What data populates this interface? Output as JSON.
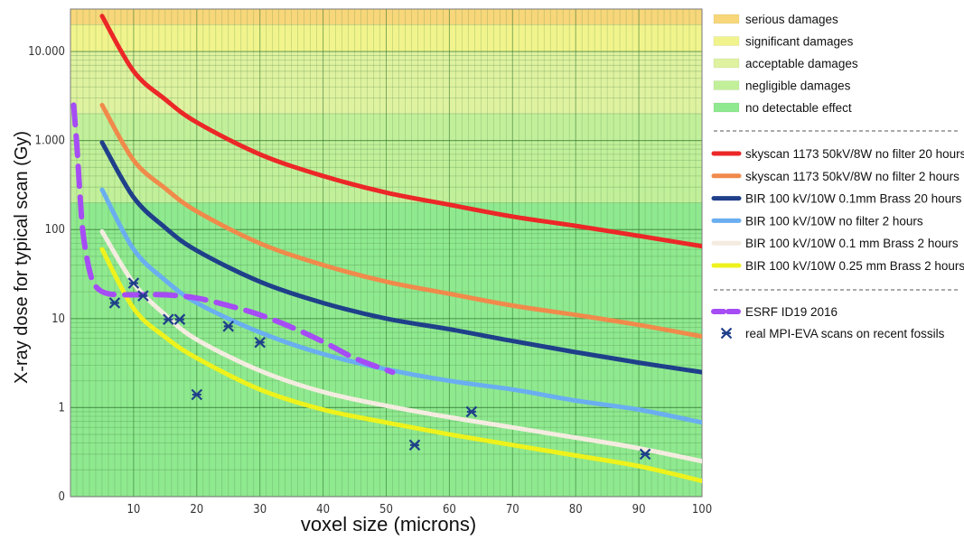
{
  "chart_data": {
    "type": "line",
    "title": "",
    "xlabel": "voxel size (microns)",
    "ylabel": "X-ray dose for typical scan (Gy)",
    "xlim": [
      0,
      100
    ],
    "ylim": [
      0.1,
      30000
    ],
    "y_scale": "log",
    "x_ticks": [
      10,
      20,
      30,
      40,
      50,
      60,
      70,
      80,
      90,
      100
    ],
    "y_ticks": [
      {
        "value": 0.1,
        "label": "0"
      },
      {
        "value": 1,
        "label": "1"
      },
      {
        "value": 10,
        "label": "10"
      },
      {
        "value": 100,
        "label": "100"
      },
      {
        "value": 1000,
        "label": "1.000"
      },
      {
        "value": 10000,
        "label": "10.000"
      }
    ],
    "grid": true,
    "legend_position": "right",
    "damage_bands": [
      {
        "label": "serious damages",
        "from": 20000,
        "to": 30000,
        "color": "#f7d77a"
      },
      {
        "label": "significant damages",
        "from": 10000,
        "to": 20000,
        "color": "#f1f48c"
      },
      {
        "label": "acceptable damages",
        "from": 2000,
        "to": 10000,
        "color": "#dff2a0"
      },
      {
        "label": "negligible damages",
        "from": 200,
        "to": 2000,
        "color": "#c2f09a"
      },
      {
        "label": "no detectable effect",
        "from": 0.1,
        "to": 200,
        "color": "#8fe98f"
      }
    ],
    "series": [
      {
        "name": "skyscan 1173 50kV/8W no filter 20 hours",
        "color": "#ec2727",
        "style": "solid",
        "points": [
          [
            5,
            25000
          ],
          [
            10,
            6000
          ],
          [
            15,
            2900
          ],
          [
            20,
            1600
          ],
          [
            30,
            700
          ],
          [
            40,
            400
          ],
          [
            50,
            260
          ],
          [
            60,
            190
          ],
          [
            70,
            140
          ],
          [
            80,
            110
          ],
          [
            90,
            85
          ],
          [
            100,
            65
          ]
        ]
      },
      {
        "name": "skyscan 1173 50kV/8W no filter 2 hours",
        "color": "#f08a4b",
        "style": "solid",
        "points": [
          [
            5,
            2500
          ],
          [
            10,
            600
          ],
          [
            15,
            290
          ],
          [
            20,
            160
          ],
          [
            30,
            70
          ],
          [
            40,
            40
          ],
          [
            50,
            26
          ],
          [
            60,
            19
          ],
          [
            70,
            14
          ],
          [
            80,
            11
          ],
          [
            90,
            8.5
          ],
          [
            100,
            6.3
          ]
        ]
      },
      {
        "name": "BIR 100 kV/10W 0.1mm Brass 20 hours",
        "color": "#1f3f8a",
        "style": "solid",
        "points": [
          [
            5,
            950
          ],
          [
            10,
            230
          ],
          [
            15,
            105
          ],
          [
            20,
            58
          ],
          [
            30,
            26
          ],
          [
            40,
            15
          ],
          [
            50,
            10
          ],
          [
            60,
            7.6
          ],
          [
            70,
            5.6
          ],
          [
            80,
            4.2
          ],
          [
            90,
            3.2
          ],
          [
            100,
            2.5
          ]
        ]
      },
      {
        "name": "BIR 100 kV/10W no filter 2 hours",
        "color": "#6aaef0",
        "style": "solid",
        "points": [
          [
            5,
            280
          ],
          [
            10,
            60
          ],
          [
            15,
            27
          ],
          [
            20,
            15
          ],
          [
            30,
            7
          ],
          [
            40,
            4
          ],
          [
            50,
            2.7
          ],
          [
            60,
            2
          ],
          [
            70,
            1.6
          ],
          [
            80,
            1.2
          ],
          [
            90,
            0.95
          ],
          [
            100,
            0.68
          ]
        ]
      },
      {
        "name": "BIR 100 kV/10W 0.1 mm Brass 2 hours",
        "color": "#f4ece0",
        "style": "solid",
        "points": [
          [
            5,
            95
          ],
          [
            10,
            25
          ],
          [
            15,
            11
          ],
          [
            20,
            5.8
          ],
          [
            30,
            2.6
          ],
          [
            40,
            1.5
          ],
          [
            50,
            1.05
          ],
          [
            60,
            0.78
          ],
          [
            70,
            0.6
          ],
          [
            80,
            0.46
          ],
          [
            90,
            0.35
          ],
          [
            100,
            0.25
          ]
        ]
      },
      {
        "name": "BIR 100 kV/10W 0.25 mm Brass 2 hours",
        "color": "#eef21c",
        "style": "solid",
        "points": [
          [
            5,
            60
          ],
          [
            10,
            13
          ],
          [
            15,
            6.2
          ],
          [
            20,
            3.6
          ],
          [
            30,
            1.6
          ],
          [
            40,
            0.95
          ],
          [
            50,
            0.68
          ],
          [
            60,
            0.5
          ],
          [
            70,
            0.38
          ],
          [
            80,
            0.29
          ],
          [
            90,
            0.22
          ],
          [
            100,
            0.15
          ]
        ]
      },
      {
        "name": "ESRF ID19 2016",
        "color": "#a64cf5",
        "style": "dashed",
        "points": [
          [
            0.5,
            2500
          ],
          [
            1,
            900
          ],
          [
            1.5,
            250
          ],
          [
            2,
            90
          ],
          [
            3,
            35
          ],
          [
            4,
            23
          ],
          [
            6,
            19
          ],
          [
            10,
            18.5
          ],
          [
            15,
            18.5
          ],
          [
            20,
            17
          ],
          [
            25,
            14
          ],
          [
            30,
            11
          ],
          [
            35,
            8
          ],
          [
            40,
            5.5
          ],
          [
            45,
            3.6
          ],
          [
            51,
            2.5
          ]
        ]
      }
    ],
    "scatter": {
      "name": "real MPI-EVA scans on recent fossils",
      "color": "#1f3f8a",
      "marker": "asterisk",
      "points": [
        [
          7,
          15
        ],
        [
          10,
          25
        ],
        [
          11.5,
          18
        ],
        [
          15.5,
          9.8
        ],
        [
          17.3,
          9.8
        ],
        [
          20,
          1.4
        ],
        [
          25,
          8.2
        ],
        [
          30,
          5.4
        ],
        [
          54.5,
          0.38
        ],
        [
          63.5,
          0.9
        ],
        [
          91,
          0.3
        ]
      ]
    }
  }
}
